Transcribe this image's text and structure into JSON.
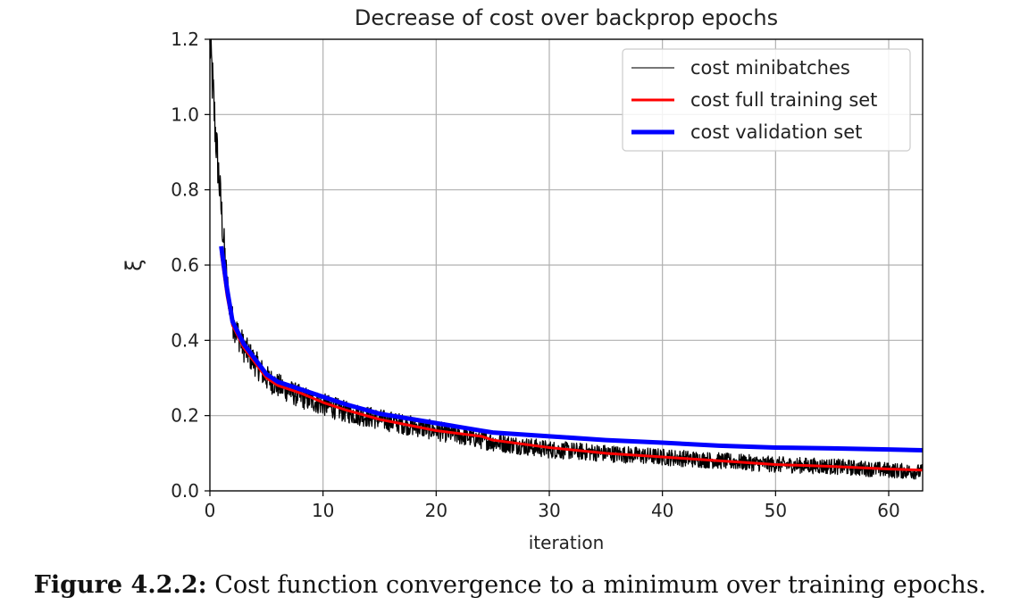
{
  "chart_data": {
    "type": "line",
    "title": "Decrease of cost over backprop epochs",
    "xlabel": "iteration",
    "ylabel": "ξ",
    "xlim": [
      0,
      63
    ],
    "ylim": [
      0,
      1.2
    ],
    "xticks": [
      0,
      10,
      20,
      30,
      40,
      50,
      60
    ],
    "yticks": [
      0.0,
      0.2,
      0.4,
      0.6,
      0.8,
      1.0,
      1.2
    ],
    "xtick_labels": [
      "0",
      "10",
      "20",
      "30",
      "40",
      "50",
      "60"
    ],
    "ytick_labels": [
      "0.0",
      "0.2",
      "0.4",
      "0.6",
      "0.8",
      "1.0",
      "1.2"
    ],
    "grid": true,
    "legend_position": "top-right",
    "series": [
      {
        "name": "cost minibatches",
        "color": "#000000",
        "legend_color": "#777777",
        "noisy": true,
        "noise_amplitude": 0.035,
        "x": [
          0,
          0.5,
          1,
          1.5,
          2,
          3,
          4,
          5,
          6,
          8,
          10,
          12,
          15,
          20,
          25,
          30,
          35,
          40,
          45,
          50,
          55,
          60,
          63
        ],
        "values": [
          1.2,
          0.95,
          0.75,
          0.55,
          0.45,
          0.38,
          0.34,
          0.3,
          0.28,
          0.25,
          0.23,
          0.21,
          0.19,
          0.16,
          0.13,
          0.11,
          0.1,
          0.09,
          0.08,
          0.07,
          0.065,
          0.055,
          0.05
        ]
      },
      {
        "name": "cost full training set",
        "color": "#ff0000",
        "noisy": false,
        "x": [
          1,
          1.5,
          2,
          3,
          4,
          5,
          6,
          8,
          10,
          12,
          15,
          20,
          24,
          25,
          30,
          35,
          40,
          45,
          50,
          55,
          60,
          63
        ],
        "values": [
          0.63,
          0.52,
          0.44,
          0.38,
          0.34,
          0.3,
          0.28,
          0.26,
          0.235,
          0.215,
          0.19,
          0.16,
          0.145,
          0.135,
          0.115,
          0.1,
          0.09,
          0.08,
          0.07,
          0.065,
          0.058,
          0.055
        ]
      },
      {
        "name": "cost validation set",
        "color": "#0000ff",
        "noisy": false,
        "x": [
          1,
          1.5,
          2,
          3,
          4,
          5,
          6,
          8,
          10,
          12,
          15,
          20,
          24,
          25,
          30,
          35,
          40,
          45,
          50,
          55,
          60,
          63
        ],
        "values": [
          0.65,
          0.54,
          0.45,
          0.39,
          0.35,
          0.31,
          0.29,
          0.27,
          0.25,
          0.23,
          0.205,
          0.18,
          0.16,
          0.155,
          0.145,
          0.135,
          0.128,
          0.12,
          0.115,
          0.113,
          0.11,
          0.108
        ]
      }
    ]
  },
  "caption": {
    "label": "Figure 4.2.2:",
    "text": " Cost function convergence to a minimum over training epochs."
  }
}
